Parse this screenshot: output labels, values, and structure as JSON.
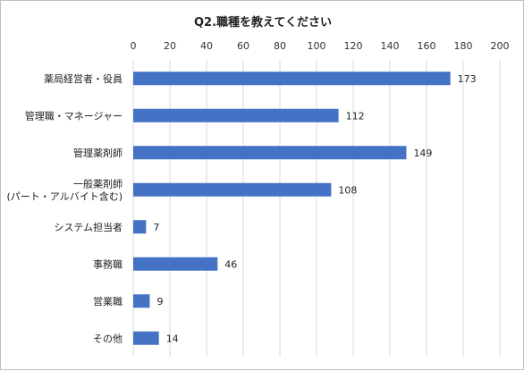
{
  "chart_data": {
    "type": "bar",
    "orientation": "horizontal",
    "title": "Q2.職種を教えてください",
    "categories": [
      [
        "薬局経営者・役員"
      ],
      [
        "管理職・マネージャー"
      ],
      [
        "管理薬剤師"
      ],
      [
        "一般薬剤師",
        "(パート・アルバイト含む)"
      ],
      [
        "システム担当者"
      ],
      [
        "事務職"
      ],
      [
        "営業職"
      ],
      [
        "その他"
      ]
    ],
    "values": [
      173,
      112,
      149,
      108,
      7,
      46,
      9,
      14
    ],
    "xlim": [
      0,
      200
    ],
    "xticks": [
      0,
      20,
      40,
      60,
      80,
      100,
      120,
      140,
      160,
      180,
      200
    ],
    "axis_position": "top",
    "grid": "vertical",
    "data_labels": true,
    "bar_color": "#4472c4",
    "grid_color": "#d9d9d9"
  }
}
